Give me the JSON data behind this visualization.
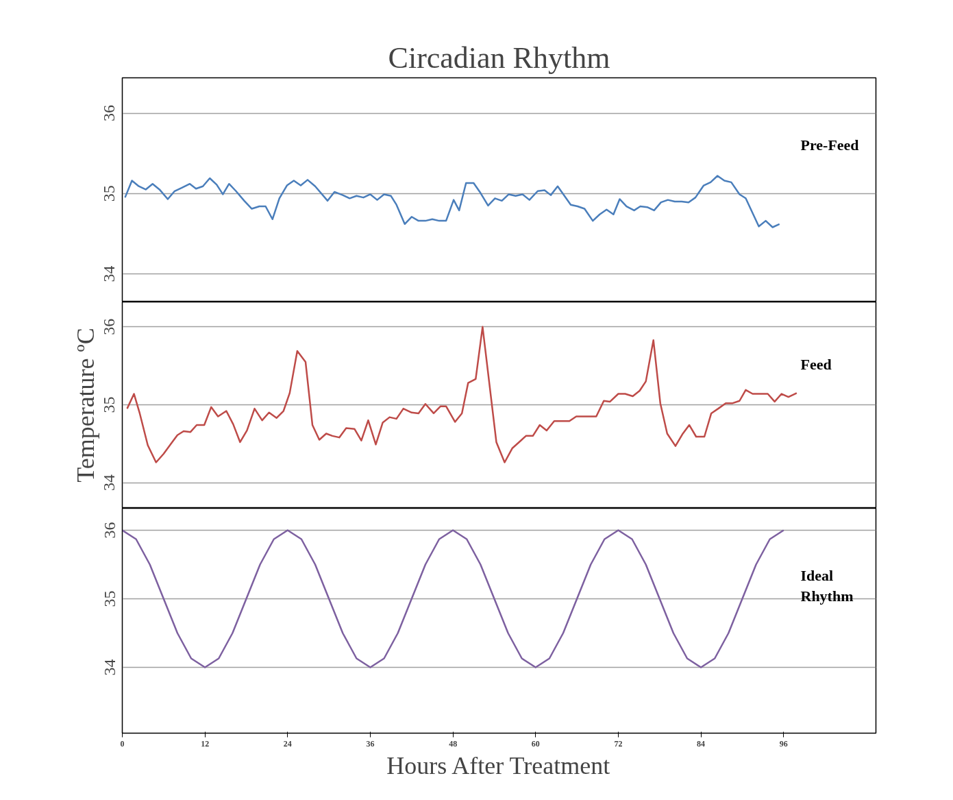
{
  "chart_data": [
    {
      "type": "line",
      "title": "Circadian Rhythm",
      "xlim": [
        0,
        109.4
      ],
      "ylim": [
        33.65,
        36.44
      ],
      "yticks": [
        34,
        35,
        36
      ],
      "xticks": [
        0,
        12,
        24,
        36,
        48,
        60,
        72,
        84,
        96
      ],
      "grid": "y",
      "tick_labels": "y",
      "x": [
        0.4,
        1.4,
        2.4,
        3.4,
        4.4,
        5.4,
        6.6,
        7.6,
        8.6,
        9.8,
        10.7,
        11.7,
        12.7,
        13.7,
        14.6,
        15.5,
        16.5,
        17.7,
        18.8,
        19.9,
        20.8,
        21.8,
        22.8,
        23.9,
        24.9,
        25.9,
        26.9,
        28.0,
        29.8,
        30.8,
        32.0,
        33.0,
        34.0,
        35.0,
        36.0,
        37.0,
        38.0,
        39.0,
        39.8,
        41.0,
        42.0,
        43.0,
        44.0,
        45.0,
        46.0,
        47.0,
        48.1,
        48.9,
        49.9,
        51.0,
        51.9,
        53.1,
        54.1,
        55.1,
        56.1,
        57.1,
        58.1,
        59.1,
        60.3,
        61.3,
        62.2,
        63.2,
        65.1,
        66.1,
        67.1,
        68.3,
        69.3,
        70.3,
        71.3,
        72.2,
        73.2,
        74.3,
        75.2,
        76.2,
        77.2,
        78.2,
        79.2,
        80.2,
        81.2,
        82.2,
        83.2,
        84.4,
        85.4,
        86.4,
        87.4,
        88.4,
        89.6,
        90.5,
        92.4,
        93.4,
        94.4,
        95.4
      ],
      "series": [
        {
          "name": "Pre-Feed",
          "color": "#4a7ebb",
          "values": [
            34.95,
            35.16,
            35.09,
            35.05,
            35.12,
            35.05,
            34.93,
            35.03,
            35.07,
            35.12,
            35.06,
            35.09,
            35.19,
            35.11,
            34.99,
            35.12,
            35.03,
            34.91,
            34.81,
            34.84,
            34.84,
            34.68,
            34.94,
            35.1,
            35.16,
            35.1,
            35.17,
            35.09,
            34.91,
            35.02,
            34.98,
            34.94,
            34.97,
            34.95,
            34.99,
            34.92,
            34.99,
            34.97,
            34.86,
            34.62,
            34.71,
            34.66,
            34.66,
            34.68,
            34.66,
            34.66,
            34.92,
            34.79,
            35.13,
            35.13,
            35.02,
            34.85,
            34.94,
            34.91,
            34.99,
            34.97,
            34.99,
            34.92,
            35.03,
            35.04,
            34.98,
            35.09,
            34.86,
            34.84,
            34.81,
            34.66,
            34.74,
            34.8,
            34.74,
            34.93,
            34.84,
            34.79,
            34.84,
            34.83,
            34.79,
            34.89,
            34.92,
            34.9,
            34.9,
            34.89,
            34.95,
            35.1,
            35.14,
            35.22,
            35.16,
            35.14,
            34.99,
            34.94,
            34.59,
            34.66,
            34.58,
            34.62
          ]
        }
      ]
    },
    {
      "type": "line",
      "ylabel": "Temperature ºC",
      "xlim": [
        0,
        109.4
      ],
      "ylim": [
        33.67,
        36.32
      ],
      "yticks": [
        34,
        35,
        36
      ],
      "xticks": [
        0,
        12,
        24,
        36,
        48,
        60,
        72,
        84,
        96
      ],
      "grid": "y",
      "tick_labels": "y",
      "x": [
        0.7,
        1.7,
        2.5,
        3.7,
        4.9,
        6.0,
        7.0,
        8.0,
        8.9,
        9.9,
        10.8,
        11.9,
        12.9,
        13.9,
        15.1,
        16.1,
        17.1,
        18.1,
        19.2,
        20.3,
        21.3,
        22.4,
        23.4,
        24.3,
        25.4,
        26.6,
        27.6,
        28.6,
        29.6,
        30.5,
        31.5,
        32.5,
        33.7,
        34.7,
        35.7,
        36.8,
        37.8,
        38.8,
        39.8,
        40.8,
        42.0,
        43.0,
        44.0,
        45.2,
        46.2,
        47.0,
        48.3,
        49.3,
        50.2,
        51.3,
        52.3,
        54.3,
        55.5,
        56.6,
        57.6,
        58.6,
        59.6,
        60.6,
        61.6,
        62.7,
        63.7,
        64.9,
        65.9,
        66.9,
        67.9,
        68.8,
        69.9,
        70.8,
        72.0,
        73.0,
        74.1,
        75.1,
        76.0,
        77.1,
        78.1,
        79.1,
        80.3,
        81.3,
        82.3,
        83.3,
        84.5,
        85.5,
        86.5,
        87.6,
        88.6,
        89.6,
        90.5,
        91.5,
        93.7,
        94.7,
        95.7,
        96.7,
        97.9
      ],
      "series": [
        {
          "name": "Feed",
          "color": "#be4b48",
          "values": [
            34.95,
            35.14,
            34.9,
            34.48,
            34.26,
            34.37,
            34.49,
            34.61,
            34.66,
            34.65,
            34.74,
            34.74,
            34.97,
            34.85,
            34.92,
            34.75,
            34.52,
            34.67,
            34.95,
            34.8,
            34.9,
            34.83,
            34.92,
            35.15,
            35.69,
            35.55,
            34.74,
            34.55,
            34.63,
            34.6,
            34.58,
            34.7,
            34.69,
            34.54,
            34.8,
            34.49,
            34.77,
            34.84,
            34.82,
            34.95,
            34.9,
            34.89,
            35.01,
            34.89,
            34.98,
            34.98,
            34.78,
            34.89,
            35.28,
            35.33,
            36.0,
            34.52,
            34.26,
            34.44,
            34.52,
            34.6,
            34.6,
            34.74,
            34.67,
            34.79,
            34.79,
            34.79,
            34.85,
            34.85,
            34.85,
            34.85,
            35.05,
            35.04,
            35.14,
            35.14,
            35.11,
            35.18,
            35.3,
            35.83,
            35.02,
            34.63,
            34.47,
            34.62,
            34.74,
            34.59,
            34.59,
            34.89,
            34.95,
            35.02,
            35.02,
            35.05,
            35.19,
            35.14,
            35.14,
            35.04,
            35.14,
            35.1,
            35.15
          ]
        }
      ]
    },
    {
      "type": "line",
      "xlabel": "Hours After Treatment",
      "xlim": [
        0,
        109.4
      ],
      "ylim": [
        33.04,
        36.32
      ],
      "yticks": [
        34,
        35,
        36
      ],
      "xticks": [
        0,
        12,
        24,
        36,
        48,
        60,
        72,
        84,
        96
      ],
      "grid": "y",
      "x": [
        0,
        2,
        4,
        6,
        8,
        10,
        12,
        14,
        16,
        18,
        20,
        22,
        24,
        26,
        28,
        30,
        32,
        34,
        36,
        38,
        40,
        42,
        44,
        46,
        48,
        50,
        52,
        54,
        56,
        58,
        60,
        62,
        64,
        66,
        68,
        70,
        72,
        74,
        76,
        78,
        80,
        82,
        84,
        86,
        88,
        90,
        92,
        94,
        96
      ],
      "series": [
        {
          "name": "Ideal Rhythm",
          "color": "#7d60a0",
          "values": [
            36,
            35.87,
            35.5,
            35,
            34.5,
            34.13,
            34,
            34.13,
            34.5,
            35,
            35.5,
            35.87,
            36,
            35.87,
            35.5,
            35,
            34.5,
            34.13,
            34,
            34.13,
            34.5,
            35,
            35.5,
            35.87,
            36,
            35.87,
            35.5,
            35,
            34.5,
            34.13,
            34,
            34.13,
            34.5,
            35,
            35.5,
            35.87,
            36,
            35.87,
            35.5,
            35,
            34.5,
            34.13,
            34,
            34.13,
            34.5,
            35,
            35.5,
            35.87,
            36
          ]
        }
      ]
    }
  ]
}
